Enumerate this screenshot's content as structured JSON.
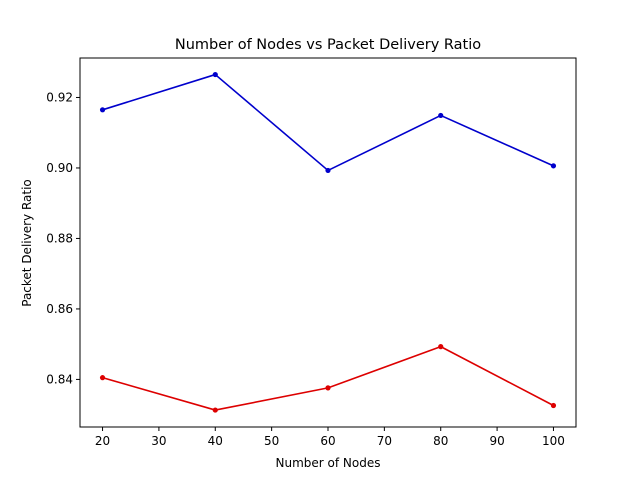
{
  "chart_data": {
    "type": "line",
    "title": "Number of Nodes vs Packet Delivery Ratio",
    "xlabel": "Number of Nodes",
    "ylabel": "Packet Delivery Ratio",
    "x": [
      20,
      40,
      60,
      80,
      100
    ],
    "xlim": [
      16,
      104
    ],
    "ylim": [
      0.8265,
      0.9312
    ],
    "xticks": [
      20,
      30,
      40,
      50,
      60,
      70,
      80,
      90,
      100
    ],
    "yticks": [
      0.84,
      0.86,
      0.88,
      0.9,
      0.92
    ],
    "ytick_labels": [
      "0.84",
      "0.86",
      "0.88",
      "0.90",
      "0.92"
    ],
    "grid": false,
    "legend": "none",
    "series": [
      {
        "color": "#0000cc",
        "values": [
          0.9165,
          0.9265,
          0.8993,
          0.9149,
          0.9006
        ]
      },
      {
        "color": "#dd0000",
        "values": [
          0.8405,
          0.8313,
          0.8376,
          0.8493,
          0.8326
        ]
      }
    ]
  }
}
